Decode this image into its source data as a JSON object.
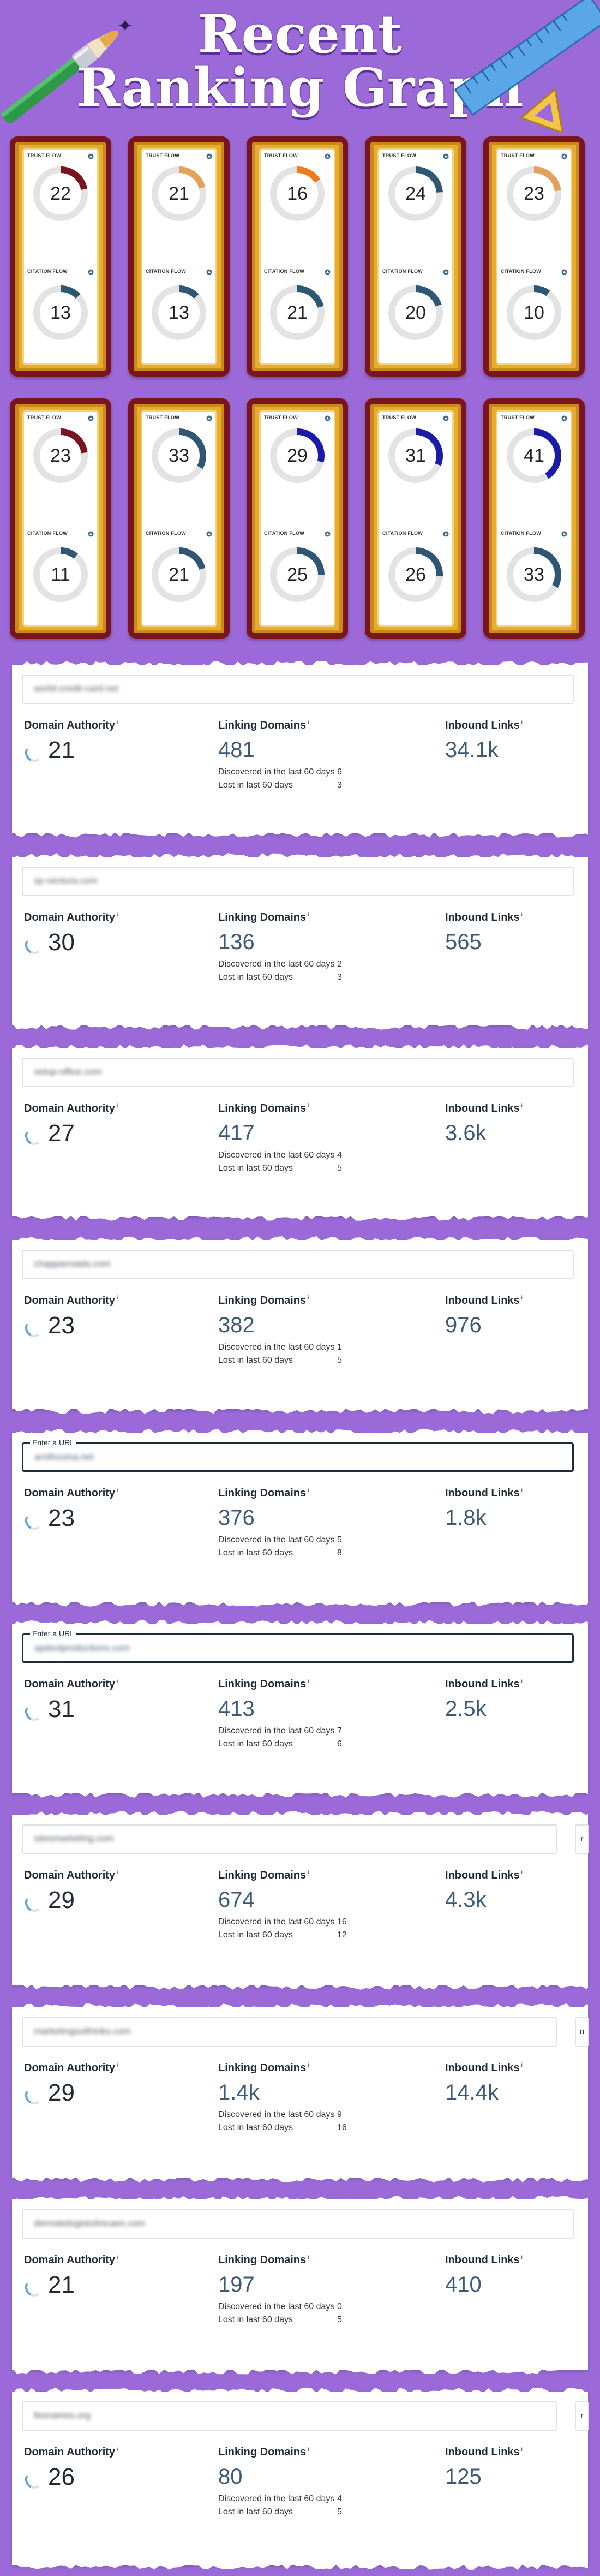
{
  "header": {
    "title_line1": "Recent",
    "title_line2": "Ranking Graph"
  },
  "flow_labels": {
    "trust": "TRUST FLOW",
    "citation": "CITATION FLOW"
  },
  "colors": {
    "background": "#9b6ad8",
    "card_gold": "#e9ad2e",
    "card_border": "#7a1420",
    "donut_track": "#e3e3e3"
  },
  "cards": [
    {
      "trust": {
        "value": 22,
        "color": "#7a1420"
      },
      "citation": {
        "value": 13,
        "color": "#2f5673"
      }
    },
    {
      "trust": {
        "value": 21,
        "color": "#e2a25c"
      },
      "citation": {
        "value": 13,
        "color": "#2f5673"
      }
    },
    {
      "trust": {
        "value": 16,
        "color": "#f07a1c"
      },
      "citation": {
        "value": 21,
        "color": "#2f5673"
      }
    },
    {
      "trust": {
        "value": 24,
        "color": "#2f5673"
      },
      "citation": {
        "value": 20,
        "color": "#2f5673"
      }
    },
    {
      "trust": {
        "value": 23,
        "color": "#e2a25c"
      },
      "citation": {
        "value": 10,
        "color": "#2f5673"
      }
    },
    {
      "trust": {
        "value": 23,
        "color": "#7a1420"
      },
      "citation": {
        "value": 11,
        "color": "#2f5673"
      }
    },
    {
      "trust": {
        "value": 33,
        "color": "#2f5673"
      },
      "citation": {
        "value": 21,
        "color": "#2f5673"
      }
    },
    {
      "trust": {
        "value": 29,
        "color": "#1c1aa8"
      },
      "citation": {
        "value": 25,
        "color": "#2f5673"
      }
    },
    {
      "trust": {
        "value": 31,
        "color": "#1c1aa8"
      },
      "citation": {
        "value": 26,
        "color": "#2f5673"
      }
    },
    {
      "trust": {
        "value": 41,
        "color": "#1c1aa8"
      },
      "citation": {
        "value": 33,
        "color": "#2f5673"
      }
    }
  ],
  "panel_labels": {
    "domain_authority": "Domain Authority",
    "linking_domains": "Linking Domains",
    "inbound_links": "Inbound Links",
    "discovered": "Discovered in the last 60 days",
    "lost": "Lost in last 60 days",
    "info_mark": "i",
    "enter_url": "Enter a URL"
  },
  "panels": [
    {
      "url": "world-credit-card.net",
      "da": 21,
      "linking": "481",
      "discovered": "6",
      "lost": "3",
      "inbound": "34.1k",
      "active": false,
      "go": ""
    },
    {
      "url": "sp-ventura.com",
      "da": 30,
      "linking": "136",
      "discovered": "2",
      "lost": "3",
      "inbound": "565",
      "active": false,
      "go": ""
    },
    {
      "url": "setup-office.com",
      "da": 27,
      "linking": "417",
      "discovered": "4",
      "lost": "5",
      "inbound": "3.6k",
      "active": false,
      "go": ""
    },
    {
      "url": "chapparroads.com",
      "da": 23,
      "linking": "382",
      "discovered": "1",
      "lost": "5",
      "inbound": "976",
      "active": false,
      "go": ""
    },
    {
      "url": "arnthosma.net",
      "da": 23,
      "linking": "376",
      "discovered": "5",
      "lost": "8",
      "inbound": "1.8k",
      "active": true,
      "go": ""
    },
    {
      "url": "apdsolproductions.com",
      "da": 31,
      "linking": "413",
      "discovered": "7",
      "lost": "6",
      "inbound": "2.5k",
      "active": true,
      "go": ""
    },
    {
      "url": "sitesmarketing.com",
      "da": 29,
      "linking": "674",
      "discovered": "16",
      "lost": "12",
      "inbound": "4.3k",
      "active": false,
      "go": "r"
    },
    {
      "url": "marketingsolthinks.com",
      "da": 29,
      "linking": "1.4k",
      "discovered": "9",
      "lost": "16",
      "inbound": "14.4k",
      "active": false,
      "go": "n"
    },
    {
      "url": "dermatologistclinicaes.com",
      "da": 21,
      "linking": "197",
      "discovered": "0",
      "lost": "5",
      "inbound": "410",
      "active": false,
      "go": ""
    },
    {
      "url": "feonames.org",
      "da": 26,
      "linking": "80",
      "discovered": "4",
      "lost": "5",
      "inbound": "125",
      "active": false,
      "go": "r"
    }
  ]
}
